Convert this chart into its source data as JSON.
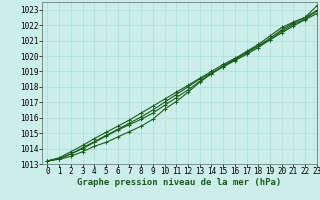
{
  "title": "Graphe pression niveau de la mer (hPa)",
  "background_color": "#cceee8",
  "grid_color": "#aadddd",
  "line_color": "#1a5c1a",
  "xlim": [
    -0.5,
    23
  ],
  "ylim": [
    1013,
    1023.5
  ],
  "xticks": [
    0,
    1,
    2,
    3,
    4,
    5,
    6,
    7,
    8,
    9,
    10,
    11,
    12,
    13,
    14,
    15,
    16,
    17,
    18,
    19,
    20,
    21,
    22,
    23
  ],
  "yticks": [
    1013,
    1014,
    1015,
    1016,
    1017,
    1018,
    1019,
    1020,
    1021,
    1022,
    1023
  ],
  "series": [
    [
      1013.2,
      1013.3,
      1013.5,
      1013.8,
      1014.15,
      1014.4,
      1014.75,
      1015.1,
      1015.45,
      1015.9,
      1016.55,
      1017.05,
      1017.65,
      1018.3,
      1018.85,
      1019.35,
      1019.8,
      1020.3,
      1020.75,
      1021.3,
      1021.85,
      1022.2,
      1022.5,
      1023.25
    ],
    [
      1013.2,
      1013.35,
      1013.65,
      1014.05,
      1014.45,
      1014.85,
      1015.25,
      1015.65,
      1016.05,
      1016.5,
      1017.0,
      1017.5,
      1018.0,
      1018.5,
      1018.9,
      1019.3,
      1019.7,
      1020.1,
      1020.55,
      1021.05,
      1021.6,
      1022.05,
      1022.4,
      1022.9
    ],
    [
      1013.2,
      1013.35,
      1013.65,
      1014.0,
      1014.4,
      1014.8,
      1015.2,
      1015.55,
      1015.9,
      1016.3,
      1016.8,
      1017.3,
      1017.8,
      1018.35,
      1018.85,
      1019.3,
      1019.75,
      1020.2,
      1020.65,
      1021.15,
      1021.7,
      1022.15,
      1022.5,
      1022.95
    ],
    [
      1013.2,
      1013.4,
      1013.8,
      1014.2,
      1014.65,
      1015.05,
      1015.45,
      1015.85,
      1016.3,
      1016.75,
      1017.2,
      1017.65,
      1018.1,
      1018.55,
      1019.0,
      1019.45,
      1019.85,
      1020.25,
      1020.65,
      1021.05,
      1021.5,
      1021.95,
      1022.35,
      1022.75
    ]
  ],
  "marker": "+",
  "markersize": 3,
  "linewidth": 0.8,
  "tick_fontsize": 5.5,
  "title_fontsize": 6.5
}
